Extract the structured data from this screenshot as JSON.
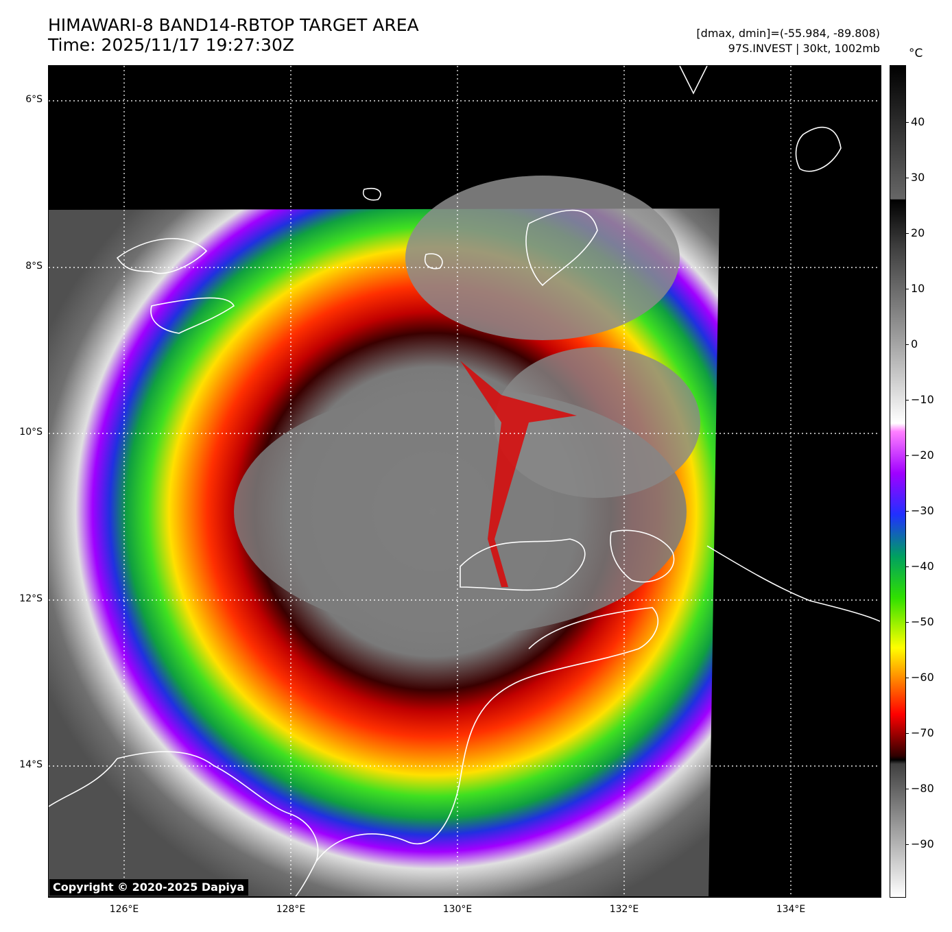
{
  "header": {
    "title_line1": "HIMAWARI-8 BAND14-RBTOP TARGET AREA",
    "title_line2": "Time: 2025/11/17 19:27:30Z",
    "range_text": "[dmax, dmin]=(-55.984, -89.808)",
    "storm_text": "97S.INVEST | 30kt, 1002mb"
  },
  "map": {
    "lat_labels": [
      "6°S",
      "8°S",
      "10°S",
      "12°S",
      "14°S"
    ],
    "lon_labels": [
      "126°E",
      "128°E",
      "130°E",
      "132°E",
      "134°E"
    ],
    "copyright": "Copyright © 2020-2025 Dapiya"
  },
  "colorbar": {
    "unit": "°C",
    "labels": [
      "40",
      "30",
      "20",
      "10",
      "0",
      "−10",
      "−20",
      "−30",
      "−40",
      "−50",
      "−60",
      "−70",
      "−80",
      "−90"
    ],
    "range": [
      -100,
      50
    ]
  },
  "colors": {
    "cold_core": "#808080",
    "red_ring": "#e00000",
    "orange": "#ff8000",
    "yellow": "#ffe000",
    "green": "#30e000",
    "blue": "#0030ff",
    "purple": "#a000ff",
    "coastline": "#ffffff"
  }
}
